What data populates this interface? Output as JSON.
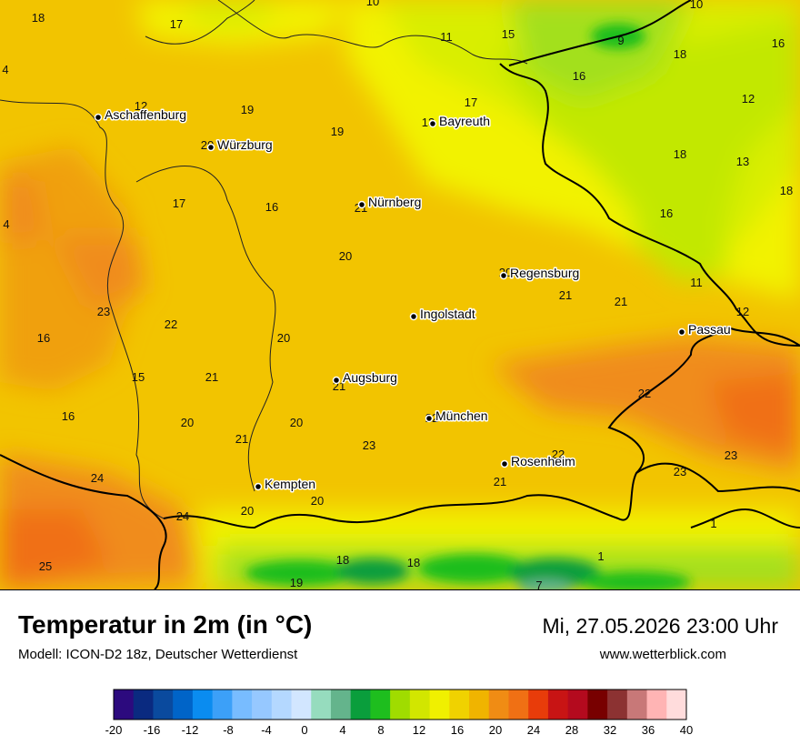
{
  "map": {
    "cities": [
      {
        "name": "Aschaffenburg"
      },
      {
        "name": "Würzburg"
      },
      {
        "name": "Bayreuth"
      },
      {
        "name": "Nürnberg"
      },
      {
        "name": "Regensburg"
      },
      {
        "name": "Ingolstadt"
      },
      {
        "name": "Passau"
      },
      {
        "name": "Augsburg"
      },
      {
        "name": "München"
      },
      {
        "name": "Rosenheim"
      },
      {
        "name": "Kempten"
      }
    ],
    "temperatures": [
      "18",
      "17",
      "10",
      "10",
      "11",
      "15",
      "9",
      "16",
      "18",
      "4",
      "16",
      "12",
      "19",
      "17",
      "12",
      "13",
      "20",
      "19",
      "18",
      "13",
      "18",
      "4",
      "17",
      "16",
      "21",
      "16",
      "20",
      "20",
      "21",
      "21",
      "11",
      "12",
      "23",
      "22",
      "20",
      "16",
      "15",
      "21",
      "21",
      "22",
      "16",
      "20",
      "20",
      "22",
      "21",
      "23",
      "23",
      "22",
      "24",
      "21",
      "23",
      "20",
      "24",
      "20",
      "25",
      "18",
      "19",
      "18",
      "1",
      "7",
      "1"
    ],
    "colors": {
      "cold": "#a3e01b",
      "mild": "#d9ee00",
      "yellow": "#f2f200",
      "warm": "#f2c400",
      "orange": "#f08c1a",
      "hot": "#f07018",
      "alpine": "#1aa03c"
    }
  },
  "footer": {
    "title": "Temperatur in 2m (in °C)",
    "model": "Modell: ICON-D2 18z, Deutscher Wetterdienst",
    "datetime": "Mi, 27.05.2026 23:00 Uhr",
    "website": "www.wetterblick.com"
  },
  "legend": {
    "min": -20,
    "max": 40,
    "tick_labels": [
      "-20",
      "-16",
      "-12",
      "-8",
      "-4",
      "0",
      "4",
      "8",
      "12",
      "16",
      "20",
      "24",
      "28",
      "32",
      "36",
      "40"
    ],
    "colors": [
      "#2c0a7e",
      "#0a2a80",
      "#0a4a9e",
      "#0064c8",
      "#0a8cf0",
      "#3ca0f8",
      "#78bcff",
      "#96c8ff",
      "#b4d8ff",
      "#d2e6ff",
      "#96dcbe",
      "#64b48c",
      "#0a9e3c",
      "#1ebe1e",
      "#a0dc00",
      "#d2e600",
      "#f0f000",
      "#f0d200",
      "#f0b400",
      "#f08c14",
      "#f07014",
      "#e83c0a",
      "#c81414",
      "#b40a1e",
      "#780000",
      "#8c3232",
      "#c87878",
      "#ffb4b4",
      "#ffdcdc"
    ]
  }
}
